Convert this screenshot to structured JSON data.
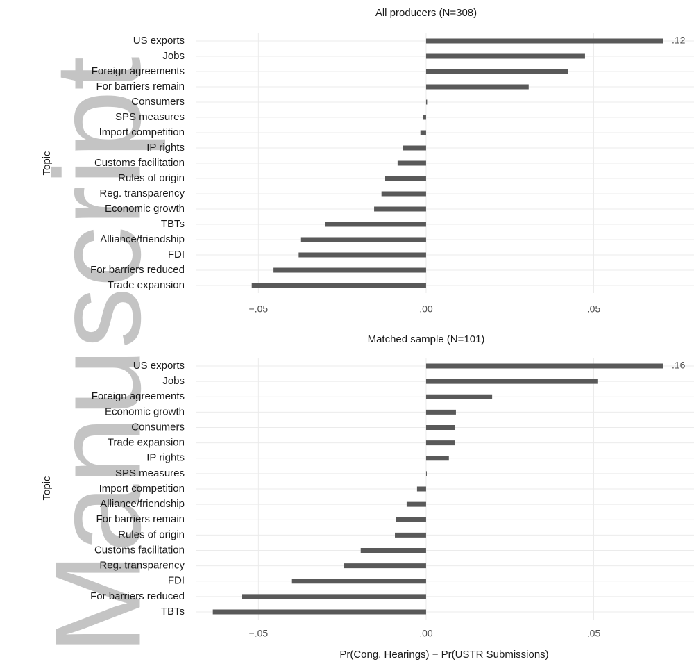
{
  "watermark": "Manuscript",
  "chart_data": [
    {
      "type": "bar",
      "orientation": "horizontal",
      "title": "All producers (N=308)",
      "ylabel": "Topic",
      "categories": [
        "US exports",
        "Jobs",
        "Foreign agreements",
        "For barriers remain",
        "Consumers",
        "SPS measures",
        "Import competition",
        "IP rights",
        "Customs facilitation",
        "Rules of origin",
        "Reg. transparency",
        "Economic growth",
        "TBTs",
        "Alliance/friendship",
        "FDI",
        "For barriers reduced",
        "Trade expansion"
      ],
      "values": [
        0.12,
        0.0474,
        0.0424,
        0.0306,
        0.0003,
        -0.001,
        -0.0017,
        -0.007,
        -0.0085,
        -0.0122,
        -0.0133,
        -0.0155,
        -0.03,
        -0.0375,
        -0.038,
        -0.0455,
        -0.052
      ],
      "value_labels": [
        ".12",
        null,
        null,
        null,
        null,
        null,
        null,
        null,
        null,
        null,
        null,
        null,
        null,
        null,
        null,
        null,
        null
      ],
      "color": "#595959",
      "xlim": [
        -0.0685,
        0.0708
      ],
      "xticks": [
        {
          "value": -0.05,
          "label": "−.05"
        },
        {
          "value": 0,
          "label": ".00"
        },
        {
          "value": 0.05,
          "label": ".05"
        }
      ],
      "grid": true
    },
    {
      "type": "bar",
      "orientation": "horizontal",
      "title": "Matched sample (N=101)",
      "ylabel": "Topic",
      "xlabel": "Pr(Cong. Hearings) − Pr(USTR Submissions)",
      "categories": [
        "US exports",
        "Jobs",
        "Foreign agreements",
        "Economic growth",
        "Consumers",
        "Trade expansion",
        "IP rights",
        "SPS measures",
        "Import competition",
        "Alliance/friendship",
        "For barriers remain",
        "Rules of origin",
        "Customs facilitation",
        "Reg. transparency",
        "FDI",
        "For barriers reduced",
        "TBTs"
      ],
      "values": [
        0.16,
        0.0511,
        0.0197,
        0.0089,
        0.0087,
        0.0085,
        0.0068,
        0.0002,
        -0.0027,
        -0.0058,
        -0.0089,
        -0.0093,
        -0.0195,
        -0.0246,
        -0.04,
        -0.0549,
        -0.0636
      ],
      "value_labels": [
        ".16",
        null,
        null,
        null,
        null,
        null,
        null,
        null,
        null,
        null,
        null,
        null,
        null,
        null,
        null,
        null,
        null
      ],
      "color": "#595959",
      "xlim": [
        -0.0685,
        0.0708
      ],
      "xticks": [
        {
          "value": -0.05,
          "label": "−.05"
        },
        {
          "value": 0,
          "label": ".00"
        },
        {
          "value": 0.05,
          "label": ".05"
        }
      ],
      "grid": true
    }
  ]
}
